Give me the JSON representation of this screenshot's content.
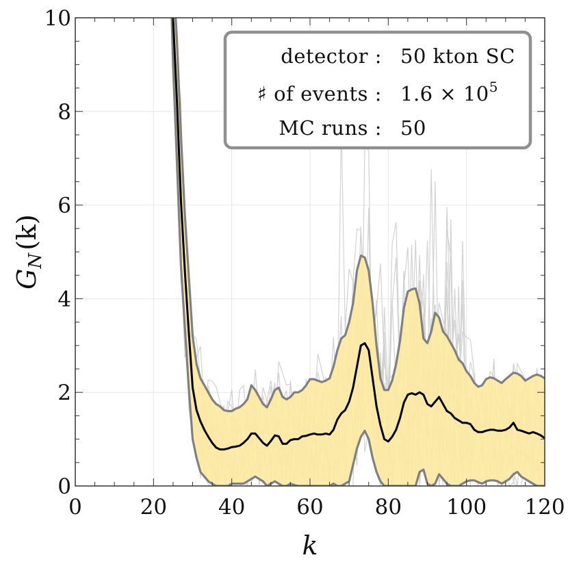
{
  "chart_data": {
    "type": "line",
    "xlabel": "k",
    "ylabel": "G",
    "ylabel_sub": "N",
    "ylabel_arg": "(k)",
    "xlim": [
      0,
      120
    ],
    "ylim": [
      0,
      10
    ],
    "x_ticks": [
      0,
      20,
      40,
      60,
      80,
      100,
      120
    ],
    "y_ticks": [
      0,
      2,
      4,
      6,
      8,
      10
    ],
    "x_tick_labels": [
      "0",
      "20",
      "40",
      "60",
      "80",
      "100",
      "120"
    ],
    "y_tick_labels": [
      "0",
      "2",
      "4",
      "6",
      "8",
      "10"
    ],
    "grid": true,
    "legend_box": {
      "position": "top-right",
      "rows": [
        {
          "label": "detector :",
          "value": "50 kton SC"
        },
        {
          "label": "♯ of events :",
          "value": "1.6 × 10",
          "value_sup": "5"
        },
        {
          "label": "MC runs :",
          "value": "50"
        }
      ]
    },
    "colors": {
      "band_fill": "#fde9a3",
      "band_edge": "#808080",
      "mean_line": "#000000",
      "mc_runs": "#d2d2d2"
    },
    "mc_run_count_drawn": 14,
    "x": [
      24,
      25,
      26,
      27,
      28,
      29,
      30,
      31,
      32,
      33,
      34,
      35,
      36,
      37,
      38,
      39,
      40,
      41,
      42,
      43,
      44,
      45,
      46,
      47,
      48,
      49,
      50,
      51,
      52,
      53,
      54,
      55,
      56,
      57,
      58,
      59,
      60,
      61,
      62,
      63,
      64,
      65,
      66,
      67,
      68,
      69,
      70,
      71,
      72,
      73,
      74,
      75,
      76,
      77,
      78,
      79,
      80,
      81,
      82,
      83,
      84,
      85,
      86,
      87,
      88,
      89,
      90,
      91,
      92,
      93,
      94,
      95,
      96,
      97,
      98,
      99,
      100,
      101,
      102,
      103,
      104,
      105,
      106,
      107,
      108,
      109,
      110,
      111,
      112,
      113,
      114,
      115,
      116,
      117,
      118,
      119,
      120
    ],
    "series": [
      {
        "role": "mean",
        "values": [
          14,
          10,
          8.2,
          6.1,
          4.6,
          3.3,
          2.1,
          1.62,
          1.38,
          1.2,
          1.05,
          0.92,
          0.82,
          0.78,
          0.78,
          0.8,
          0.83,
          0.84,
          0.86,
          0.92,
          1.0,
          1.12,
          1.12,
          1.02,
          0.92,
          0.86,
          0.96,
          1.08,
          1.06,
          0.9,
          0.9,
          0.98,
          1.0,
          1.0,
          1.06,
          1.07,
          1.1,
          1.12,
          1.1,
          1.1,
          1.12,
          1.1,
          1.2,
          1.42,
          1.55,
          1.62,
          1.8,
          2.1,
          2.55,
          3.0,
          3.05,
          2.9,
          2.3,
          1.7,
          1.3,
          1.0,
          0.95,
          1.05,
          1.2,
          1.45,
          1.78,
          1.95,
          1.98,
          1.95,
          2.0,
          1.95,
          1.75,
          1.7,
          1.8,
          1.9,
          1.75,
          1.6,
          1.55,
          1.45,
          1.4,
          1.35,
          1.35,
          1.32,
          1.2,
          1.15,
          1.15,
          1.18,
          1.2,
          1.2,
          1.18,
          1.18,
          1.2,
          1.25,
          1.35,
          1.2,
          1.18,
          1.15,
          1.12,
          1.15,
          1.12,
          1.08,
          1.02
        ]
      },
      {
        "role": "upper",
        "values": [
          15,
          11,
          9.5,
          7.5,
          5.8,
          4.5,
          3.2,
          2.6,
          2.3,
          2.15,
          2.0,
          1.85,
          1.75,
          1.7,
          1.62,
          1.6,
          1.6,
          1.65,
          1.68,
          1.75,
          1.85,
          2.15,
          2.05,
          1.9,
          1.75,
          1.68,
          1.85,
          2.05,
          2.1,
          1.9,
          1.85,
          1.9,
          2.0,
          2.0,
          2.05,
          2.15,
          2.28,
          2.28,
          2.25,
          2.22,
          2.25,
          2.3,
          2.55,
          2.9,
          3.15,
          3.22,
          3.5,
          3.9,
          4.6,
          4.92,
          4.88,
          4.6,
          3.9,
          3.0,
          2.3,
          2.05,
          2.05,
          2.25,
          2.6,
          3.1,
          3.8,
          4.15,
          4.2,
          4.22,
          3.9,
          3.15,
          3.05,
          3.3,
          3.7,
          3.6,
          3.3,
          3.2,
          3.05,
          2.9,
          2.7,
          2.62,
          2.45,
          2.35,
          2.2,
          2.12,
          2.15,
          2.28,
          2.32,
          2.3,
          2.25,
          2.2,
          2.28,
          2.35,
          2.42,
          2.4,
          2.35,
          2.25,
          2.3,
          2.35,
          2.38,
          2.35,
          2.3
        ]
      },
      {
        "role": "lower",
        "values": [
          13,
          9,
          6.9,
          4.7,
          3.4,
          2.1,
          1.0,
          0.6,
          0.3,
          0.2,
          0.1,
          0.05,
          0,
          0,
          0,
          0,
          0.05,
          0.05,
          0.05,
          0.05,
          0.1,
          0.15,
          0.2,
          0.15,
          0.1,
          0,
          0.05,
          0.1,
          0.05,
          0,
          0,
          0.05,
          0.02,
          0,
          0,
          0,
          0,
          0,
          0,
          0,
          0,
          0,
          0.05,
          0,
          0,
          0.05,
          0.1,
          0.45,
          0.8,
          1.05,
          1.18,
          1.0,
          0.6,
          0.3,
          0.1,
          0,
          0,
          0,
          0,
          0,
          0,
          0,
          0,
          0,
          0.3,
          0.35,
          0.05,
          0,
          0.05,
          0.25,
          0.15,
          0.05,
          0,
          0,
          0,
          0.05,
          0.1,
          0.12,
          0.12,
          0.08,
          0.05,
          0.1,
          0.12,
          0.12,
          0.1,
          0.05,
          0.1,
          0.15,
          0.25,
          0.3,
          0.2,
          0.15,
          0.1,
          0.05,
          0,
          0,
          0
        ]
      }
    ]
  }
}
